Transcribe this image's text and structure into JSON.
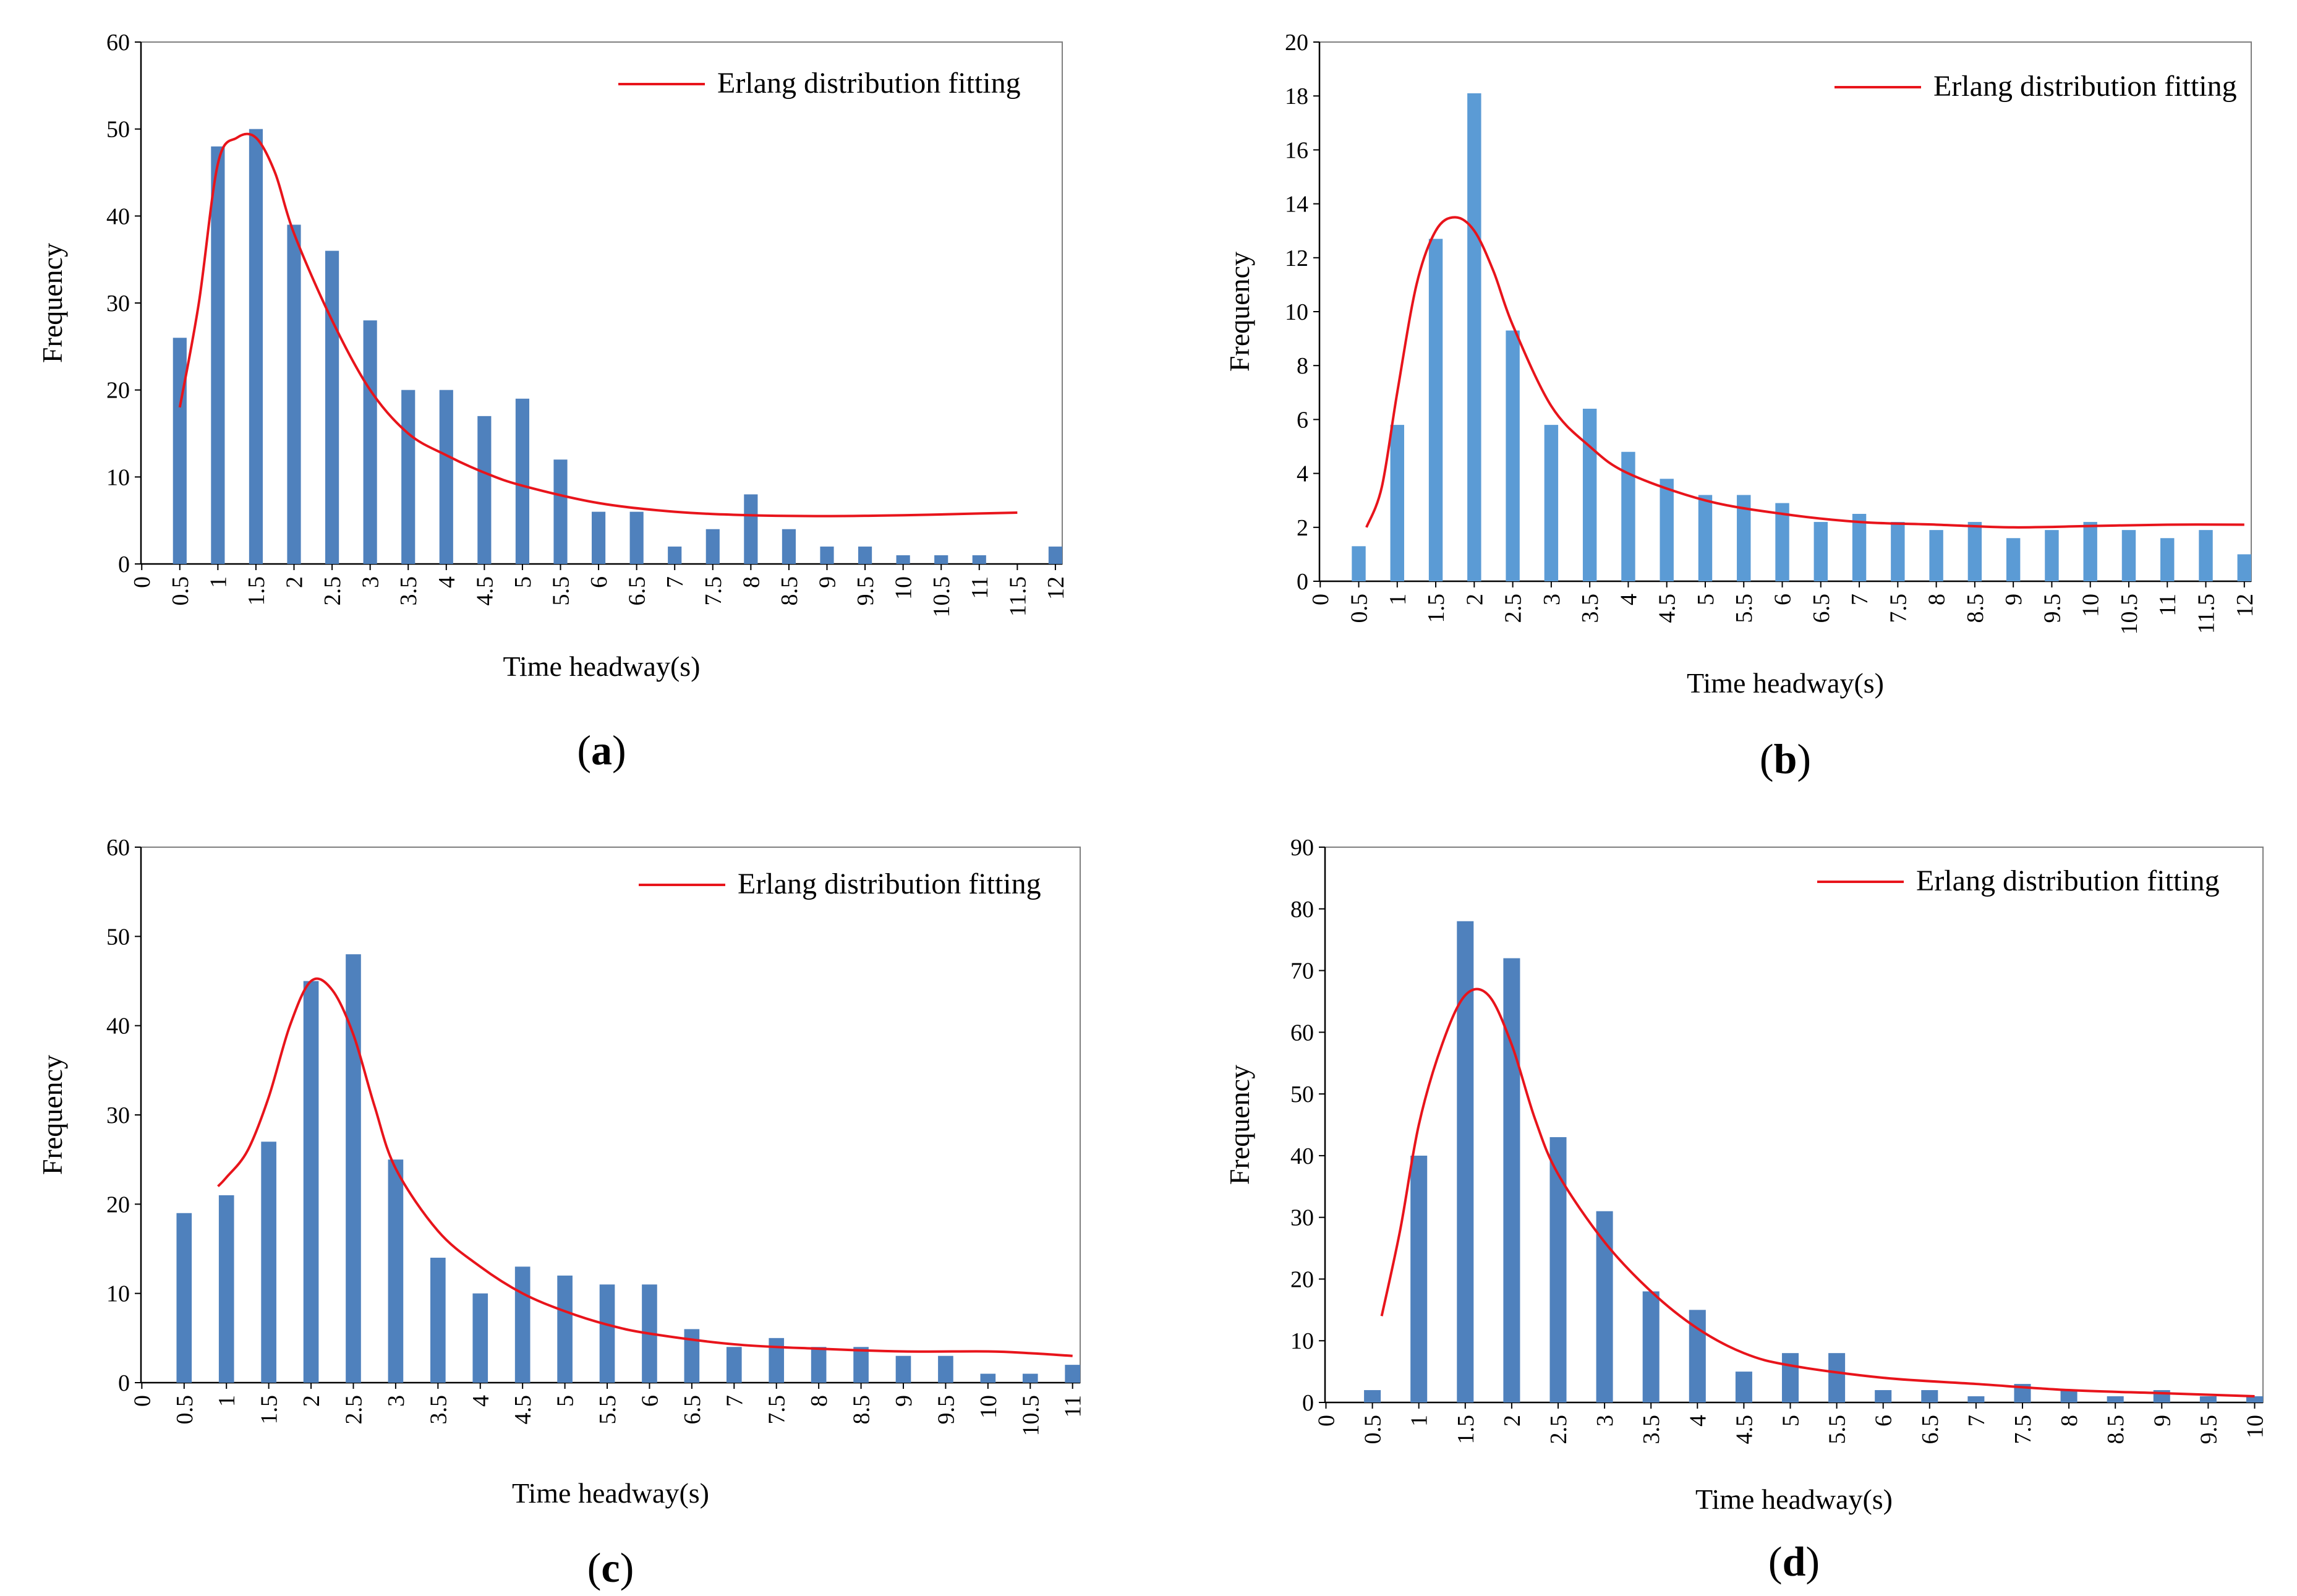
{
  "colors": {
    "bar": "#4f81bd",
    "bar_light": "#5b9bd5",
    "curve": "#e8141b",
    "axis": "#000000"
  },
  "chart_data": [
    {
      "type": "bar",
      "panel_label": "a",
      "xlabel": "Time headway(s)",
      "ylabel": "Frequency",
      "legend": "Erlang distribution fitting",
      "categories": [
        "0",
        "0.5",
        "1",
        "1.5",
        "2",
        "2.5",
        "3",
        "3.5",
        "4",
        "4.5",
        "5",
        "5.5",
        "6",
        "6.5",
        "7",
        "7.5",
        "8",
        "8.5",
        "9",
        "9.5",
        "10",
        "10.5",
        "11",
        "11.5",
        "12"
      ],
      "values": [
        0,
        26,
        48,
        50,
        39,
        36,
        28,
        20,
        20,
        17,
        19,
        12,
        6,
        6,
        2,
        4,
        8,
        4,
        2,
        2,
        1,
        1,
        1,
        0,
        2
      ],
      "yticks": [
        0,
        10,
        20,
        30,
        40,
        50,
        60
      ],
      "ylim": [
        0,
        60
      ],
      "fit_curve": {
        "name": "Erlang distribution fitting",
        "x": [
          0.5,
          0.75,
          1,
          1.25,
          1.5,
          1.75,
          2,
          2.5,
          3,
          3.5,
          4,
          4.5,
          5,
          6,
          7,
          8,
          9,
          10,
          11,
          11.5
        ],
        "y": [
          18,
          30,
          46,
          49,
          49,
          45,
          38,
          28,
          20,
          15,
          12.5,
          10.5,
          9,
          7,
          6,
          5.6,
          5.5,
          5.6,
          5.8,
          5.9
        ]
      }
    },
    {
      "type": "bar",
      "panel_label": "b",
      "xlabel": "Time headway(s)",
      "ylabel": "Frequency",
      "legend": "Erlang distribution fitting",
      "categories": [
        "0",
        "0.5",
        "1",
        "1.5",
        "2",
        "2.5",
        "3",
        "3.5",
        "4",
        "4.5",
        "5",
        "5.5",
        "6",
        "6.5",
        "7",
        "7.5",
        "8",
        "8.5",
        "9",
        "9.5",
        "10",
        "10.5",
        "11",
        "11.5",
        "12"
      ],
      "values": [
        0,
        1.3,
        5.8,
        12.7,
        18.1,
        9.3,
        5.8,
        6.4,
        4.8,
        3.8,
        3.2,
        3.2,
        2.9,
        2.2,
        2.5,
        2.2,
        1.9,
        2.2,
        1.6,
        1.9,
        2.2,
        1.9,
        1.6,
        1.9,
        1.0
      ],
      "yticks": [
        0,
        2,
        4,
        6,
        8,
        10,
        12,
        14,
        16,
        18,
        20
      ],
      "ylim": [
        0,
        20
      ],
      "fit_curve": {
        "name": "Erlang distribution fitting",
        "x": [
          0.6,
          0.8,
          1,
          1.25,
          1.5,
          1.75,
          2,
          2.25,
          2.5,
          3,
          3.5,
          4,
          5,
          6,
          7,
          8,
          9,
          10,
          11,
          12
        ],
        "y": [
          2.0,
          3.5,
          7.0,
          11.0,
          13.0,
          13.5,
          13.0,
          11.5,
          9.5,
          6.5,
          5.0,
          4.0,
          3.0,
          2.5,
          2.2,
          2.1,
          2.0,
          2.05,
          2.1,
          2.1
        ]
      }
    },
    {
      "type": "bar",
      "panel_label": "c",
      "xlabel": "Time headway(s)",
      "ylabel": "Frequency",
      "legend": "Erlang distribution fitting",
      "categories": [
        "0",
        "0.5",
        "1",
        "1.5",
        "2",
        "2.5",
        "3",
        "3.5",
        "4",
        "4.5",
        "5",
        "5.5",
        "6",
        "6.5",
        "7",
        "7.5",
        "8",
        "8.5",
        "9",
        "9.5",
        "10",
        "10.5",
        "11"
      ],
      "values": [
        0,
        19,
        21,
        27,
        45,
        48,
        25,
        14,
        10,
        13,
        12,
        11,
        11,
        6,
        4,
        5,
        4,
        4,
        3,
        3,
        1,
        1,
        2
      ],
      "yticks": [
        0,
        10,
        20,
        30,
        40,
        50,
        60
      ],
      "ylim": [
        0,
        60
      ],
      "fit_curve": {
        "name": "Erlang distribution fitting",
        "x": [
          0.9,
          1,
          1.25,
          1.5,
          1.75,
          2,
          2.25,
          2.5,
          2.75,
          3,
          3.5,
          4,
          4.5,
          5,
          5.5,
          6,
          7,
          8,
          9,
          10,
          10.5,
          11
        ],
        "y": [
          22,
          23,
          26,
          32,
          40,
          45,
          44,
          39,
          31,
          24,
          17,
          13,
          10,
          8,
          6.5,
          5.5,
          4.3,
          3.8,
          3.5,
          3.5,
          3.3,
          3.0
        ]
      }
    },
    {
      "type": "bar",
      "panel_label": "d",
      "xlabel": "Time headway(s)",
      "ylabel": "Frequency",
      "legend": "Erlang distribution fitting",
      "categories": [
        "0",
        "0.5",
        "1",
        "1.5",
        "2",
        "2.5",
        "3",
        "3.5",
        "4",
        "4.5",
        "5",
        "5.5",
        "6",
        "6.5",
        "7",
        "7.5",
        "8",
        "8.5",
        "9",
        "9.5",
        "10"
      ],
      "values": [
        0,
        2,
        40,
        78,
        72,
        43,
        31,
        18,
        15,
        5,
        8,
        8,
        2,
        2,
        1,
        3,
        2,
        1,
        2,
        1,
        1
      ],
      "yticks": [
        0,
        10,
        20,
        30,
        40,
        50,
        60,
        70,
        80,
        90
      ],
      "ylim": [
        0,
        90
      ],
      "fit_curve": {
        "name": "Erlang distribution fitting",
        "x": [
          0.6,
          0.8,
          1,
          1.25,
          1.5,
          1.75,
          2,
          2.25,
          2.5,
          3,
          3.5,
          4,
          4.5,
          5,
          6,
          7,
          8,
          9,
          10
        ],
        "y": [
          14,
          28,
          45,
          58,
          66,
          66,
          58,
          46,
          37,
          26,
          18,
          12,
          8,
          6,
          4,
          3,
          2,
          1.5,
          1
        ]
      }
    }
  ]
}
